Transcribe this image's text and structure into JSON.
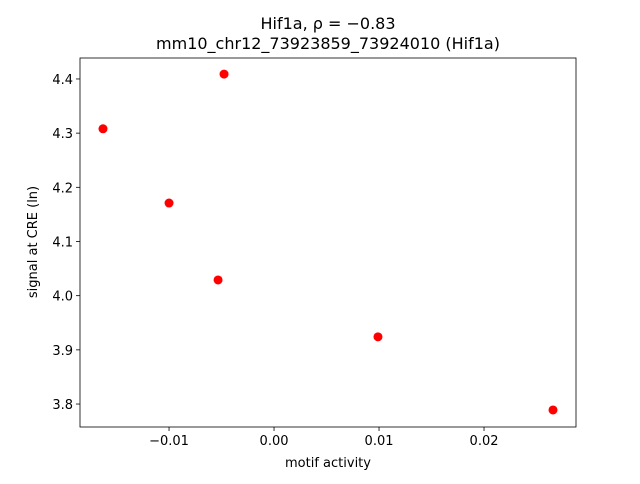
{
  "chart_data": {
    "type": "scatter",
    "title": [
      "Hif1a, ρ = −0.83",
      "mm10_chr12_73923859_73924010 (Hif1a)"
    ],
    "xlabel": "motif activity",
    "ylabel": "signal at CRE (ln)",
    "color": "#ff0000",
    "x": [
      -0.01629,
      -0.00476,
      -0.01,
      -0.00533,
      0.0099,
      0.02657
    ],
    "y": [
      4.308,
      4.409,
      4.171,
      4.029,
      3.924,
      3.789
    ],
    "xlim": [
      -0.01848,
      0.02876
    ],
    "ylim": [
      3.7576,
      4.4387
    ],
    "xticks": [
      {
        "value": -0.01,
        "label": "−0.01"
      },
      {
        "value": 0,
        "label": "0.00"
      },
      0.01,
      0.02
    ],
    "yticks": [
      3.8,
      3.9,
      {
        "value": 4.0,
        "label": "4.0"
      },
      4.1,
      4.2,
      4.3,
      4.4
    ]
  }
}
